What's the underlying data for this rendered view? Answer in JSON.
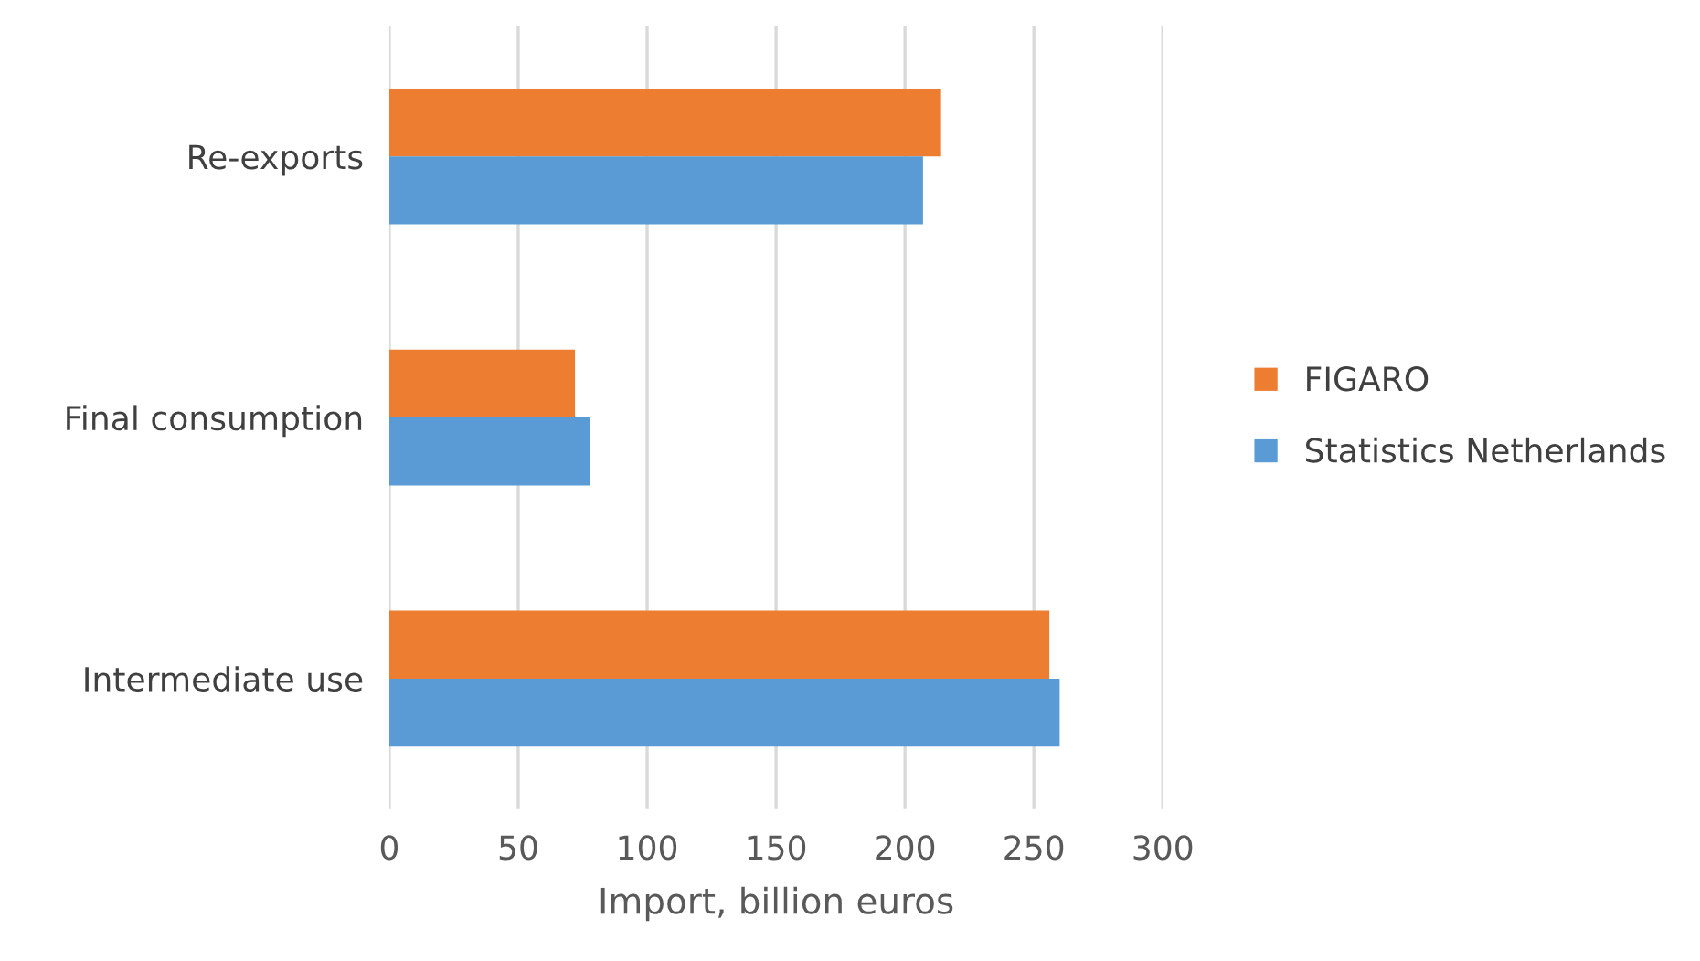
{
  "chart_data": {
    "type": "bar",
    "orientation": "horizontal",
    "xlabel": "Import, billion euros",
    "categories": [
      "Re-exports",
      "Final consumption",
      "Intermediate use"
    ],
    "series": [
      {
        "name": "FIGARO",
        "color": "#ed7d31",
        "values": [
          214,
          72,
          256
        ]
      },
      {
        "name": "Statistics Netherlands",
        "color": "#5b9bd5",
        "values": [
          207,
          78,
          260
        ]
      }
    ],
    "xlim": [
      0,
      300
    ],
    "xticks": [
      0,
      50,
      100,
      150,
      200,
      250,
      300
    ],
    "grid": "x",
    "legend": "right"
  }
}
